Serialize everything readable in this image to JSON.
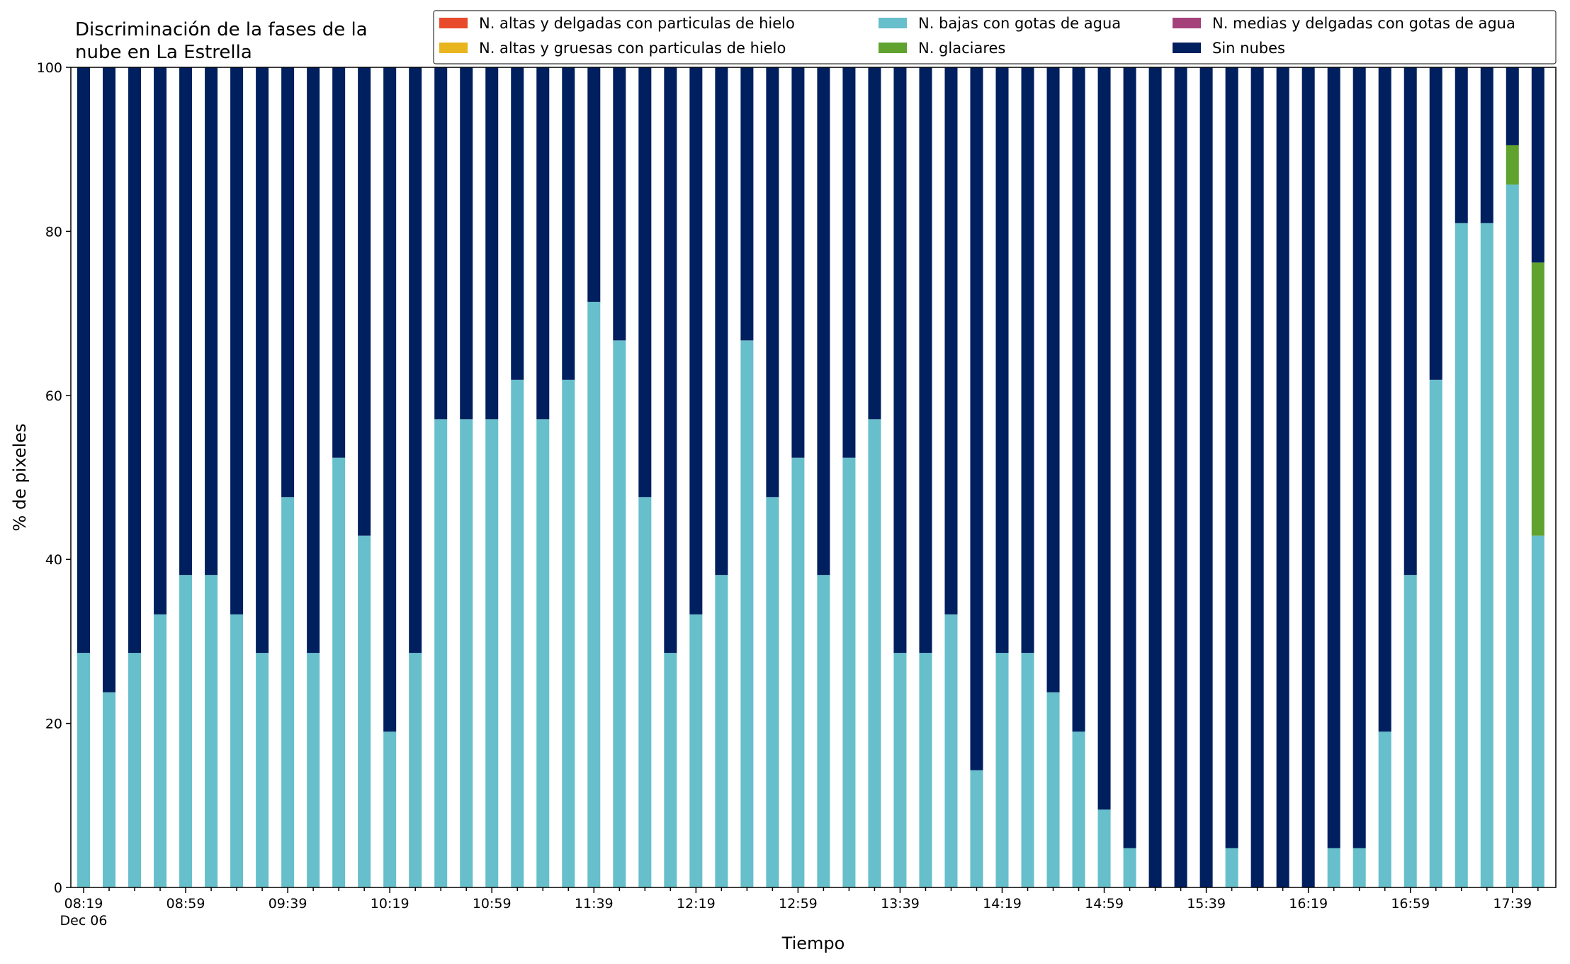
{
  "chart_data": {
    "type": "bar",
    "stacked": true,
    "title_lines": [
      "Discriminación de la fases de la",
      "nube en La Estrella"
    ],
    "xlabel": "Tiempo",
    "ylabel": "% de pixeles",
    "ylim": [
      0,
      100
    ],
    "yticks": [
      0,
      20,
      40,
      60,
      80,
      100
    ],
    "xtick_labels": [
      "08:19",
      "08:59",
      "09:39",
      "10:19",
      "10:59",
      "11:39",
      "12:19",
      "12:59",
      "13:39",
      "14:19",
      "14:59",
      "15:39",
      "16:19",
      "16:59",
      "17:39"
    ],
    "xtick_sublabel": "Dec 06",
    "grid": false,
    "legend_position": "top-right",
    "categories": [
      "08:19",
      "08:29",
      "08:39",
      "08:49",
      "08:59",
      "09:09",
      "09:19",
      "09:29",
      "09:39",
      "09:49",
      "09:59",
      "10:09",
      "10:19",
      "10:29",
      "10:39",
      "10:49",
      "10:59",
      "11:09",
      "11:19",
      "11:29",
      "11:39",
      "11:49",
      "11:59",
      "12:09",
      "12:19",
      "12:29",
      "12:39",
      "12:49",
      "12:59",
      "13:09",
      "13:19",
      "13:29",
      "13:39",
      "13:49",
      "13:59",
      "14:09",
      "14:19",
      "14:29",
      "14:39",
      "14:49",
      "14:59",
      "15:09",
      "15:19",
      "15:29",
      "15:39",
      "15:49",
      "15:59",
      "16:09",
      "16:19",
      "16:29",
      "16:39",
      "16:49",
      "16:59",
      "17:09",
      "17:19",
      "17:29",
      "17:39",
      "17:49"
    ],
    "series": [
      {
        "name": "N. altas y delgadas con particulas de hielo",
        "color": "#e84a2c",
        "values": [
          0,
          0,
          0,
          0,
          0,
          0,
          0,
          0,
          0,
          0,
          0,
          0,
          0,
          0,
          0,
          0,
          0,
          0,
          0,
          0,
          0,
          0,
          0,
          0,
          0,
          0,
          0,
          0,
          0,
          0,
          0,
          0,
          0,
          0,
          0,
          0,
          0,
          0,
          0,
          0,
          0,
          0,
          0,
          0,
          0,
          0,
          0,
          0,
          0,
          0,
          0,
          0,
          0,
          0,
          0,
          0,
          0,
          0
        ]
      },
      {
        "name": "N. altas y gruesas con particulas de hielo",
        "color": "#e8b51e",
        "values": [
          0,
          0,
          0,
          0,
          0,
          0,
          0,
          0,
          0,
          0,
          0,
          0,
          0,
          0,
          0,
          0,
          0,
          0,
          0,
          0,
          0,
          0,
          0,
          0,
          0,
          0,
          0,
          0,
          0,
          0,
          0,
          0,
          0,
          0,
          0,
          0,
          0,
          0,
          0,
          0,
          0,
          0,
          0,
          0,
          0,
          0,
          0,
          0,
          0,
          0,
          0,
          0,
          0,
          0,
          0,
          0,
          0,
          0
        ]
      },
      {
        "name": "N. bajas con gotas de agua",
        "color": "#66bfcb",
        "values": [
          28.6,
          23.8,
          28.6,
          33.3,
          38.1,
          38.1,
          33.3,
          28.6,
          47.6,
          28.6,
          52.4,
          42.9,
          19.0,
          28.6,
          57.1,
          57.1,
          57.1,
          61.9,
          57.1,
          61.9,
          71.4,
          66.7,
          47.6,
          28.6,
          33.3,
          38.1,
          66.7,
          47.6,
          52.4,
          38.1,
          52.4,
          57.1,
          28.6,
          28.6,
          33.3,
          14.3,
          28.6,
          28.6,
          23.8,
          19.0,
          9.5,
          4.8,
          0,
          0,
          0,
          4.8,
          0,
          0,
          0,
          4.8,
          4.8,
          19.0,
          38.1,
          61.9,
          81.0,
          81.0,
          85.7,
          42.9
        ]
      },
      {
        "name": "N. glaciares",
        "color": "#5fa22e",
        "values": [
          0,
          0,
          0,
          0,
          0,
          0,
          0,
          0,
          0,
          0,
          0,
          0,
          0,
          0,
          0,
          0,
          0,
          0,
          0,
          0,
          0,
          0,
          0,
          0,
          0,
          0,
          0,
          0,
          0,
          0,
          0,
          0,
          0,
          0,
          0,
          0,
          0,
          0,
          0,
          0,
          0,
          0,
          0,
          0,
          0,
          0,
          0,
          0,
          0,
          0,
          0,
          0,
          0,
          0,
          0,
          0,
          4.8,
          33.3
        ]
      },
      {
        "name": "N. medias y delgadas con gotas de agua",
        "color": "#a5417a",
        "values": [
          0,
          0,
          0,
          0,
          0,
          0,
          0,
          0,
          0,
          0,
          0,
          0,
          0,
          0,
          0,
          0,
          0,
          0,
          0,
          0,
          0,
          0,
          0,
          0,
          0,
          0,
          0,
          0,
          0,
          0,
          0,
          0,
          0,
          0,
          0,
          0,
          0,
          0,
          0,
          0,
          0,
          0,
          0,
          0,
          0,
          0,
          0,
          0,
          0,
          0,
          0,
          0,
          0,
          0,
          0,
          0,
          0,
          0
        ]
      },
      {
        "name": "Sin nubes",
        "color": "#001f5f",
        "values": [
          71.4,
          76.2,
          71.4,
          66.7,
          61.9,
          61.9,
          66.7,
          71.4,
          52.4,
          71.4,
          47.6,
          57.1,
          81.0,
          71.4,
          42.9,
          42.9,
          42.9,
          38.1,
          42.9,
          38.1,
          28.6,
          33.3,
          52.4,
          71.4,
          66.7,
          61.9,
          33.3,
          52.4,
          47.6,
          61.9,
          47.6,
          42.9,
          71.4,
          71.4,
          66.7,
          85.7,
          71.4,
          71.4,
          76.2,
          81.0,
          90.5,
          95.2,
          100,
          100,
          100,
          95.2,
          100,
          100,
          100,
          95.2,
          95.2,
          81.0,
          61.9,
          38.1,
          19.0,
          19.0,
          9.5,
          23.8
        ]
      }
    ]
  }
}
